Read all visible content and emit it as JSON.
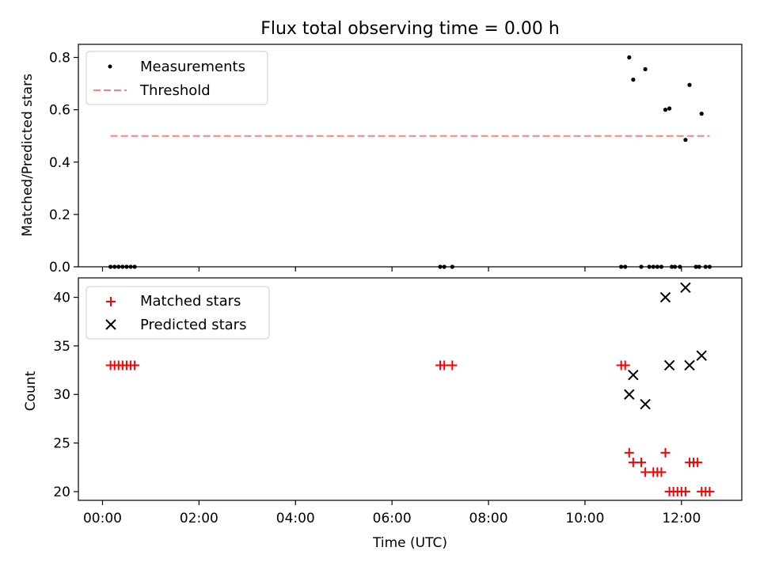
{
  "title": "Flux total observing time = 0.00 h",
  "xlabel": "Time (UTC)",
  "chart_data": [
    {
      "type": "scatter",
      "ylabel": "Matched/Predicted stars",
      "ylim": [
        0,
        0.85
      ],
      "yticks": [
        0.0,
        0.2,
        0.4,
        0.6,
        0.8
      ],
      "ytick_labels": [
        "0.0",
        "0.2",
        "0.4",
        "0.6",
        "0.8"
      ],
      "legend_position": "upper left",
      "series": [
        {
          "name": "Measurements",
          "kind": "scatter",
          "marker": "dot",
          "color": "#000000",
          "points": [
            {
              "x": "00:10",
              "y": 0
            },
            {
              "x": "00:15",
              "y": 0
            },
            {
              "x": "00:20",
              "y": 0
            },
            {
              "x": "00:25",
              "y": 0
            },
            {
              "x": "00:30",
              "y": 0
            },
            {
              "x": "00:35",
              "y": 0
            },
            {
              "x": "00:40",
              "y": 0
            },
            {
              "x": "07:00",
              "y": 0
            },
            {
              "x": "07:05",
              "y": 0
            },
            {
              "x": "07:15",
              "y": 0
            },
            {
              "x": "10:45",
              "y": 0
            },
            {
              "x": "10:50",
              "y": 0
            },
            {
              "x": "10:55",
              "y": 0.8
            },
            {
              "x": "11:00",
              "y": 0.715
            },
            {
              "x": "11:10",
              "y": 0
            },
            {
              "x": "11:15",
              "y": 0.755
            },
            {
              "x": "11:20",
              "y": 0
            },
            {
              "x": "11:25",
              "y": 0
            },
            {
              "x": "11:30",
              "y": 0
            },
            {
              "x": "11:35",
              "y": 0
            },
            {
              "x": "11:40",
              "y": 0.6
            },
            {
              "x": "11:45",
              "y": 0.605
            },
            {
              "x": "11:48",
              "y": 0
            },
            {
              "x": "11:52",
              "y": 0
            },
            {
              "x": "11:58",
              "y": 0
            },
            {
              "x": "12:05",
              "y": 0.485
            },
            {
              "x": "12:10",
              "y": 0.695
            },
            {
              "x": "12:18",
              "y": 0
            },
            {
              "x": "12:22",
              "y": 0
            },
            {
              "x": "12:25",
              "y": 0.585
            },
            {
              "x": "12:30",
              "y": 0
            },
            {
              "x": "12:35",
              "y": 0
            }
          ]
        },
        {
          "name": "Threshold",
          "kind": "line",
          "style": "dashed",
          "color": "#ff8080",
          "points": [
            {
              "x": "00:10",
              "y": 0.5
            },
            {
              "x": "12:35",
              "y": 0.5
            }
          ]
        }
      ]
    },
    {
      "type": "scatter",
      "ylabel": "Count",
      "ylim": [
        19.1,
        42
      ],
      "yticks": [
        20,
        25,
        30,
        35,
        40
      ],
      "ytick_labels": [
        "20",
        "25",
        "30",
        "35",
        "40"
      ],
      "xlim": [
        "-00:30",
        "13:15"
      ],
      "xticks": [
        "00:00",
        "02:00",
        "04:00",
        "06:00",
        "08:00",
        "10:00",
        "12:00"
      ],
      "xtick_labels": [
        "00:00",
        "02:00",
        "04:00",
        "06:00",
        "08:00",
        "10:00",
        "12:00"
      ],
      "legend_position": "upper left",
      "series": [
        {
          "name": "Matched stars",
          "kind": "scatter",
          "marker": "plus",
          "color": "#ff0000",
          "points": [
            {
              "x": "00:10",
              "y": 33
            },
            {
              "x": "00:15",
              "y": 33
            },
            {
              "x": "00:20",
              "y": 33
            },
            {
              "x": "00:25",
              "y": 33
            },
            {
              "x": "00:30",
              "y": 33
            },
            {
              "x": "00:35",
              "y": 33
            },
            {
              "x": "00:40",
              "y": 33
            },
            {
              "x": "07:00",
              "y": 33
            },
            {
              "x": "07:05",
              "y": 33
            },
            {
              "x": "07:15",
              "y": 33
            },
            {
              "x": "10:45",
              "y": 33
            },
            {
              "x": "10:50",
              "y": 33
            },
            {
              "x": "10:55",
              "y": 24
            },
            {
              "x": "11:00",
              "y": 23
            },
            {
              "x": "11:10",
              "y": 23
            },
            {
              "x": "11:15",
              "y": 22
            },
            {
              "x": "11:25",
              "y": 22
            },
            {
              "x": "11:30",
              "y": 22
            },
            {
              "x": "11:35",
              "y": 22
            },
            {
              "x": "11:40",
              "y": 24
            },
            {
              "x": "11:45",
              "y": 20
            },
            {
              "x": "11:50",
              "y": 20
            },
            {
              "x": "11:55",
              "y": 20
            },
            {
              "x": "12:00",
              "y": 20
            },
            {
              "x": "12:05",
              "y": 20
            },
            {
              "x": "12:10",
              "y": 23
            },
            {
              "x": "12:15",
              "y": 23
            },
            {
              "x": "12:20",
              "y": 23
            },
            {
              "x": "12:25",
              "y": 20
            },
            {
              "x": "12:30",
              "y": 20
            },
            {
              "x": "12:35",
              "y": 20
            }
          ]
        },
        {
          "name": "Predicted stars",
          "kind": "scatter",
          "marker": "x",
          "color": "#000000",
          "points": [
            {
              "x": "10:55",
              "y": 30
            },
            {
              "x": "11:00",
              "y": 32
            },
            {
              "x": "11:15",
              "y": 29
            },
            {
              "x": "11:40",
              "y": 40
            },
            {
              "x": "11:45",
              "y": 33
            },
            {
              "x": "12:05",
              "y": 41
            },
            {
              "x": "12:10",
              "y": 33
            },
            {
              "x": "12:25",
              "y": 34
            }
          ]
        }
      ]
    }
  ]
}
